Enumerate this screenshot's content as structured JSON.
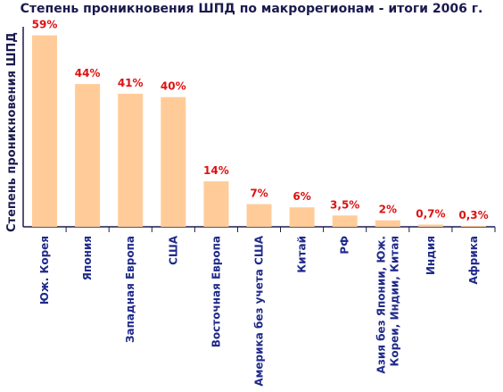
{
  "chart_data": {
    "type": "bar",
    "title": "Степень проникновения ШПД по макрорегионам - итоги 2006 г.",
    "xlabel": "",
    "ylabel": "Степень проникновения ШПД",
    "ylim": [
      0,
      60
    ],
    "grid": false,
    "legend": "none",
    "categories": [
      "Юж. Корея",
      "Япония",
      "Западная Европа",
      "США",
      "Восточная Европа",
      "Америка без учета США",
      "Китай",
      "РФ",
      "Азия без Японии, Юж. Кореи, Индии, Китая",
      "Индия",
      "Африка"
    ],
    "category_lines": [
      [
        "Юж. Корея"
      ],
      [
        "Япония"
      ],
      [
        "Западная Европа"
      ],
      [
        "США"
      ],
      [
        "Восточная Европа"
      ],
      [
        "Америка без учета США"
      ],
      [
        "Китай"
      ],
      [
        "РФ"
      ],
      [
        "Азия без Японии, Юж.",
        "Кореи, Индии, Китая"
      ],
      [
        "Индия"
      ],
      [
        "Африка"
      ]
    ],
    "values": [
      59,
      44,
      41,
      40,
      14,
      7,
      6,
      3.5,
      2,
      0.7,
      0.3
    ],
    "value_labels": [
      "59%",
      "44%",
      "41%",
      "40%",
      "14%",
      "7%",
      "6%",
      "3,5%",
      "2%",
      "0,7%",
      "0,3%"
    ],
    "colors": {
      "bar": "#ffcc99",
      "axis": "#1a1a4e",
      "tick_text": "#1f2a8a",
      "data_label": "#dd1111"
    }
  }
}
